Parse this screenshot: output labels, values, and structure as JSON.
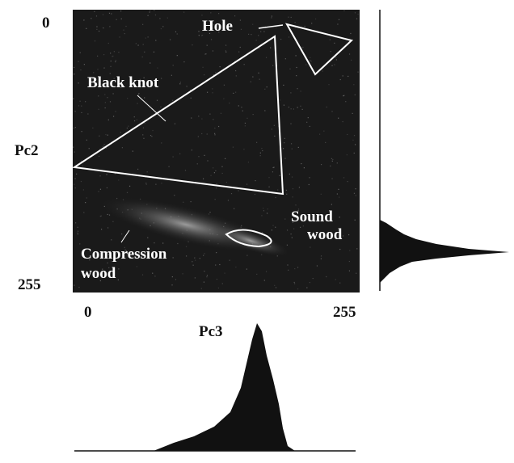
{
  "figure": {
    "y_axis": {
      "label": "Pc2",
      "ticks": [
        0,
        255
      ]
    },
    "x_axis": {
      "label": "Pc3",
      "ticks": [
        0,
        255
      ]
    },
    "annotations": [
      "Hole",
      "Black knot",
      "Sound",
      "wood",
      "Compression",
      "wood"
    ]
  }
}
